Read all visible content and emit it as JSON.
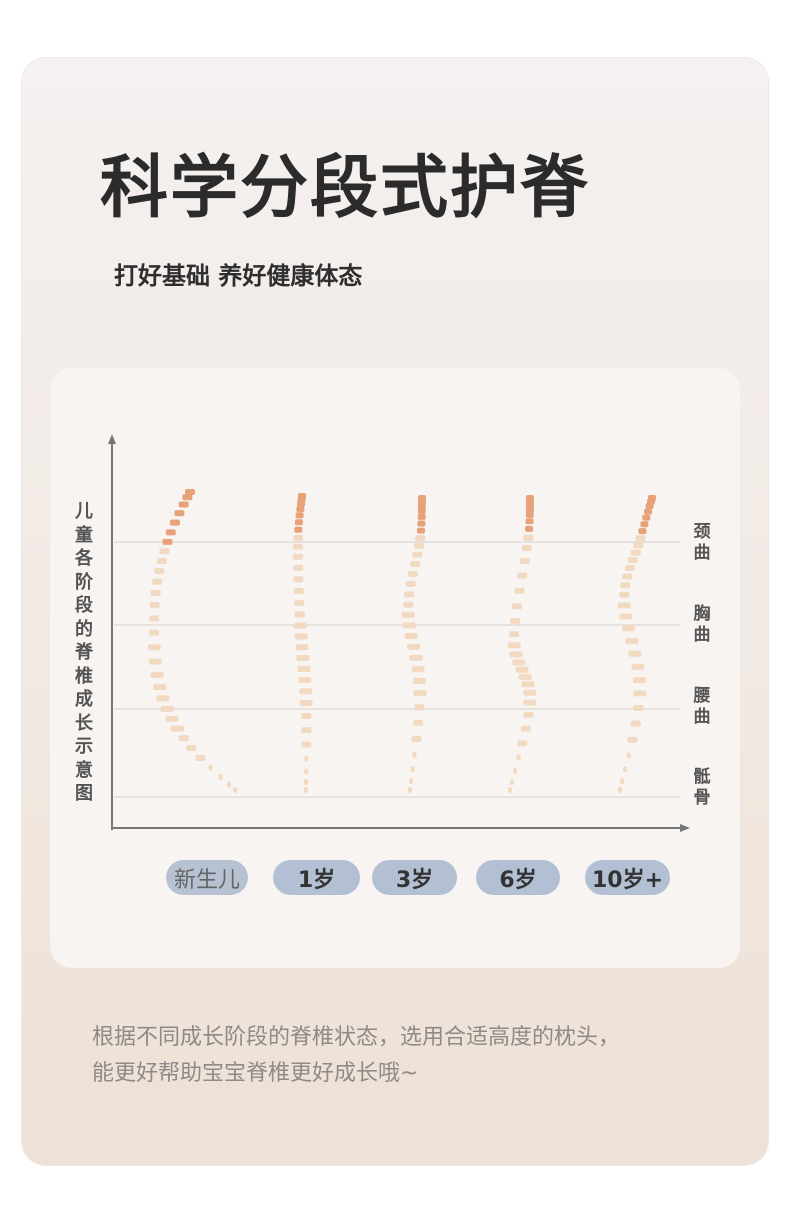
{
  "title": "科学分段式护脊",
  "subtitle": "打好基础 养好健康体态",
  "diagram": {
    "y_axis_label": "儿童各阶段的脊椎成长示意图",
    "curve_labels": [
      "颈曲",
      "胸曲",
      "腰曲",
      "骶骨"
    ],
    "stages": [
      "新生儿",
      "1岁",
      "3岁",
      "6岁",
      "10岁+"
    ],
    "colors": {
      "cervical": "#e8a27a",
      "spine": "#f1d9c2",
      "stage_pill": "#b3c0d3"
    }
  },
  "description": [
    "根据不同成长阶段的脊椎状态，选用合适高度的枕头，",
    "能更好帮助宝宝脊椎更好成长哦~"
  ]
}
